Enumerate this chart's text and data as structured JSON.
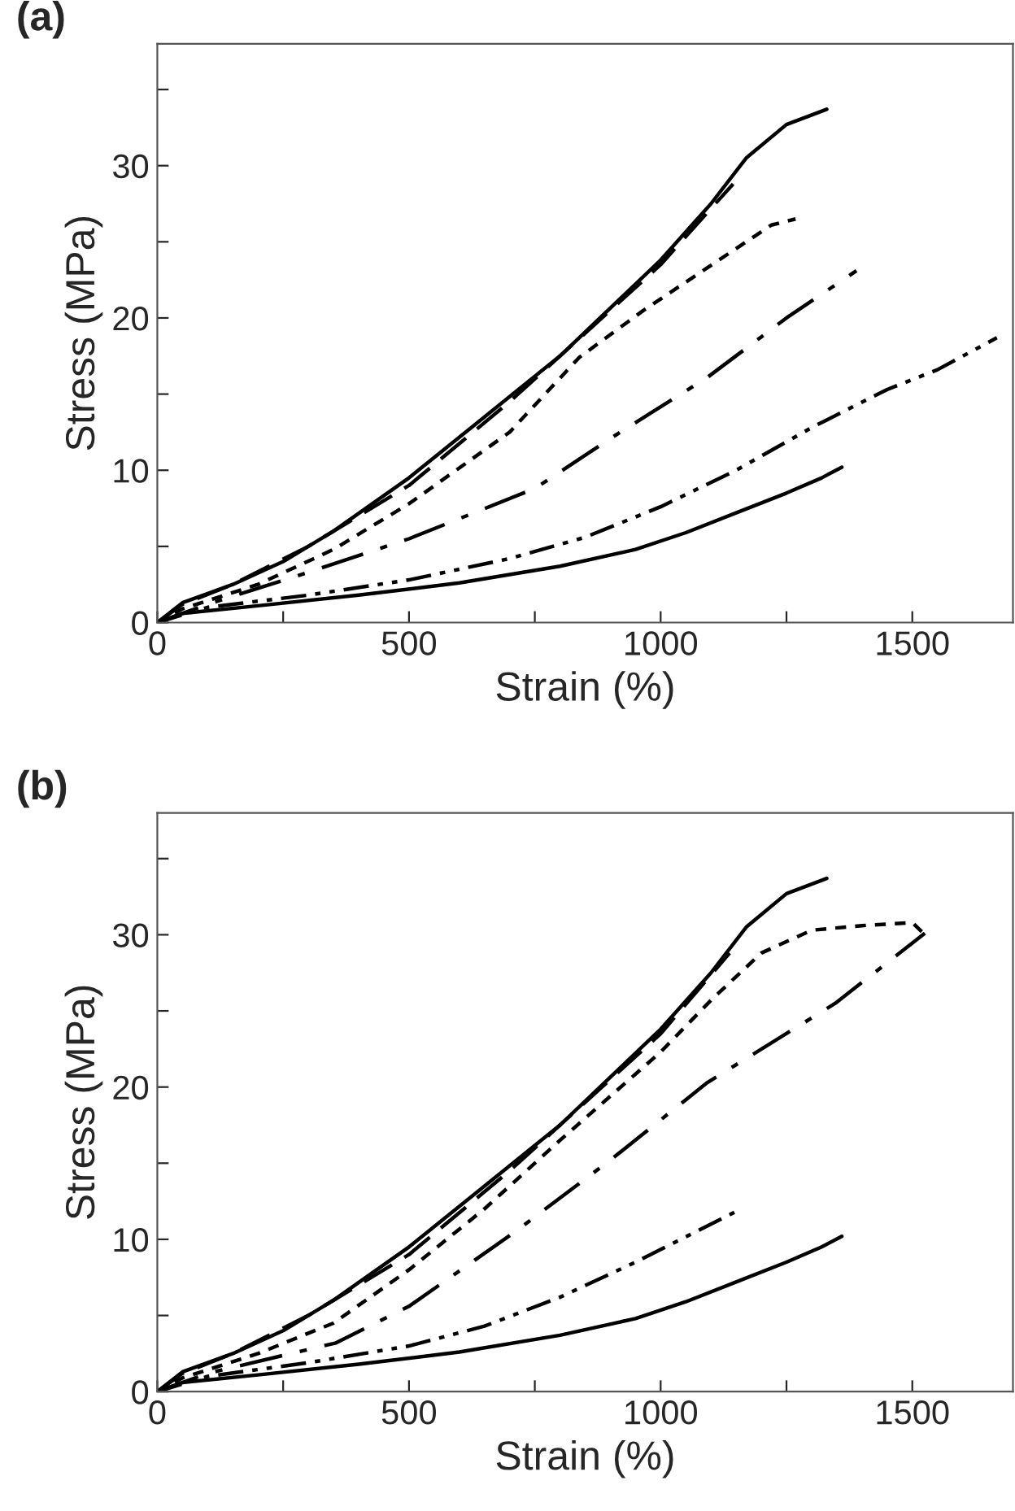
{
  "chart_data": [
    {
      "type": "line",
      "title": "(a)",
      "xlabel": "Strain (%)",
      "ylabel": "Stress (MPa)",
      "xlim": [
        0,
        1700
      ],
      "ylim": [
        0,
        38
      ],
      "xticks": [
        0,
        {
          "value": 250,
          "label": null
        },
        500,
        {
          "value": 750,
          "label": null
        },
        1000,
        {
          "value": 1250,
          "label": null
        },
        1500
      ],
      "yticks": [
        0,
        {
          "value": 5,
          "label": null
        },
        10,
        {
          "value": 15,
          "label": null
        },
        20,
        {
          "value": 25,
          "label": null
        },
        30,
        {
          "value": 35,
          "label": null
        }
      ],
      "grid": false,
      "series": [
        {
          "color": "#000000",
          "line_style": "solid",
          "x": [
            0,
            50,
            150,
            250,
            350,
            500,
            650,
            800,
            1000,
            1100,
            1170,
            1250,
            1330
          ],
          "values": [
            0,
            1.3,
            2.5,
            4,
            6,
            9.5,
            13.5,
            17.5,
            23.8,
            27.5,
            30.5,
            32.7,
            33.7
          ]
        },
        {
          "color": "#000000",
          "line_style": "dashed",
          "x": [
            0,
            50,
            150,
            300,
            500,
            700,
            900,
            1000,
            1144
          ],
          "values": [
            0,
            1.2,
            2.5,
            5,
            9,
            14.5,
            20.5,
            23.5,
            28.8
          ]
        },
        {
          "color": "#000000",
          "line_style": "dotted",
          "x": [
            0,
            50,
            200,
            350,
            500,
            700,
            838,
            966,
            1093,
            1220,
            1268
          ],
          "values": [
            0,
            0.9,
            2.5,
            4.8,
            7.8,
            12.5,
            17.4,
            20.5,
            23.3,
            26.1,
            26.5
          ]
        },
        {
          "color": "#000000",
          "line_style": "dashdot",
          "x": [
            0,
            100,
            300,
            500,
            750,
            915,
            1093,
            1250,
            1389
          ],
          "values": [
            0,
            1.2,
            3.3,
            5.5,
            8.8,
            12.4,
            16.1,
            20,
            23.1
          ]
        },
        {
          "color": "#000000",
          "line_style": "dashdotdot",
          "x": [
            0,
            100,
            300,
            500,
            700,
            850,
            1000,
            1150,
            1300,
            1450,
            1550,
            1668
          ],
          "values": [
            0,
            1,
            1.8,
            2.8,
            4.2,
            5.6,
            7.6,
            10,
            12.8,
            15.3,
            16.6,
            18.7
          ]
        },
        {
          "color": "#000000",
          "line_style": "solid",
          "x": [
            0,
            50,
            200,
            400,
            600,
            800,
            950,
            1050,
            1150,
            1250,
            1320,
            1360
          ],
          "values": [
            0,
            0.6,
            1.1,
            1.8,
            2.6,
            3.7,
            4.8,
            5.9,
            7.2,
            8.5,
            9.5,
            10.2
          ]
        }
      ]
    },
    {
      "type": "line",
      "title": "(b)",
      "xlabel": "Strain (%)",
      "ylabel": "Stress (MPa)",
      "xlim": [
        0,
        1700
      ],
      "ylim": [
        0,
        38
      ],
      "xticks": [
        0,
        {
          "value": 250,
          "label": null
        },
        500,
        {
          "value": 750,
          "label": null
        },
        1000,
        {
          "value": 1250,
          "label": null
        },
        1500
      ],
      "yticks": [
        0,
        {
          "value": 5,
          "label": null
        },
        10,
        {
          "value": 15,
          "label": null
        },
        20,
        {
          "value": 25,
          "label": null
        },
        30,
        {
          "value": 35,
          "label": null
        }
      ],
      "grid": false,
      "series": [
        {
          "color": "#000000",
          "line_style": "solid",
          "x": [
            0,
            50,
            150,
            250,
            350,
            500,
            650,
            800,
            1000,
            1100,
            1170,
            1250,
            1330
          ],
          "values": [
            0,
            1.3,
            2.5,
            4,
            6,
            9.5,
            13.5,
            17.5,
            23.8,
            27.5,
            30.5,
            32.7,
            33.7
          ]
        },
        {
          "color": "#000000",
          "line_style": "dashed",
          "x": [
            0,
            50,
            150,
            300,
            500,
            700,
            900,
            1000,
            1137
          ],
          "values": [
            0,
            1.2,
            2.5,
            5,
            9,
            14.5,
            20.5,
            23.5,
            28.8
          ]
        },
        {
          "color": "#000000",
          "line_style": "dotted",
          "x": [
            0,
            50,
            200,
            350,
            500,
            650,
            800,
            1000,
            1100,
            1200,
            1300,
            1400,
            1500,
            1525
          ],
          "values": [
            0,
            0.9,
            2.5,
            4.5,
            8,
            12,
            16.5,
            22.3,
            25.7,
            28.8,
            30.3,
            30.6,
            30.8,
            30
          ]
        },
        {
          "color": "#000000",
          "line_style": "dashdot",
          "x": [
            0,
            100,
            355,
            500,
            711,
            900,
            1093,
            1347,
            1525
          ],
          "values": [
            0,
            1.2,
            3.2,
            5.6,
            10.5,
            15.2,
            20.3,
            25.5,
            30.1
          ]
        },
        {
          "color": "#000000",
          "line_style": "dashdotdot",
          "x": [
            0,
            100,
            300,
            500,
            650,
            800,
            950,
            1148
          ],
          "values": [
            0,
            1,
            1.9,
            3,
            4.3,
            6.2,
            8.5,
            11.8
          ]
        },
        {
          "color": "#000000",
          "line_style": "solid",
          "x": [
            0,
            50,
            200,
            400,
            600,
            800,
            950,
            1050,
            1150,
            1250,
            1320,
            1360
          ],
          "values": [
            0,
            0.6,
            1.1,
            1.8,
            2.6,
            3.7,
            4.8,
            5.9,
            7.2,
            8.5,
            9.5,
            10.2
          ]
        }
      ]
    }
  ]
}
